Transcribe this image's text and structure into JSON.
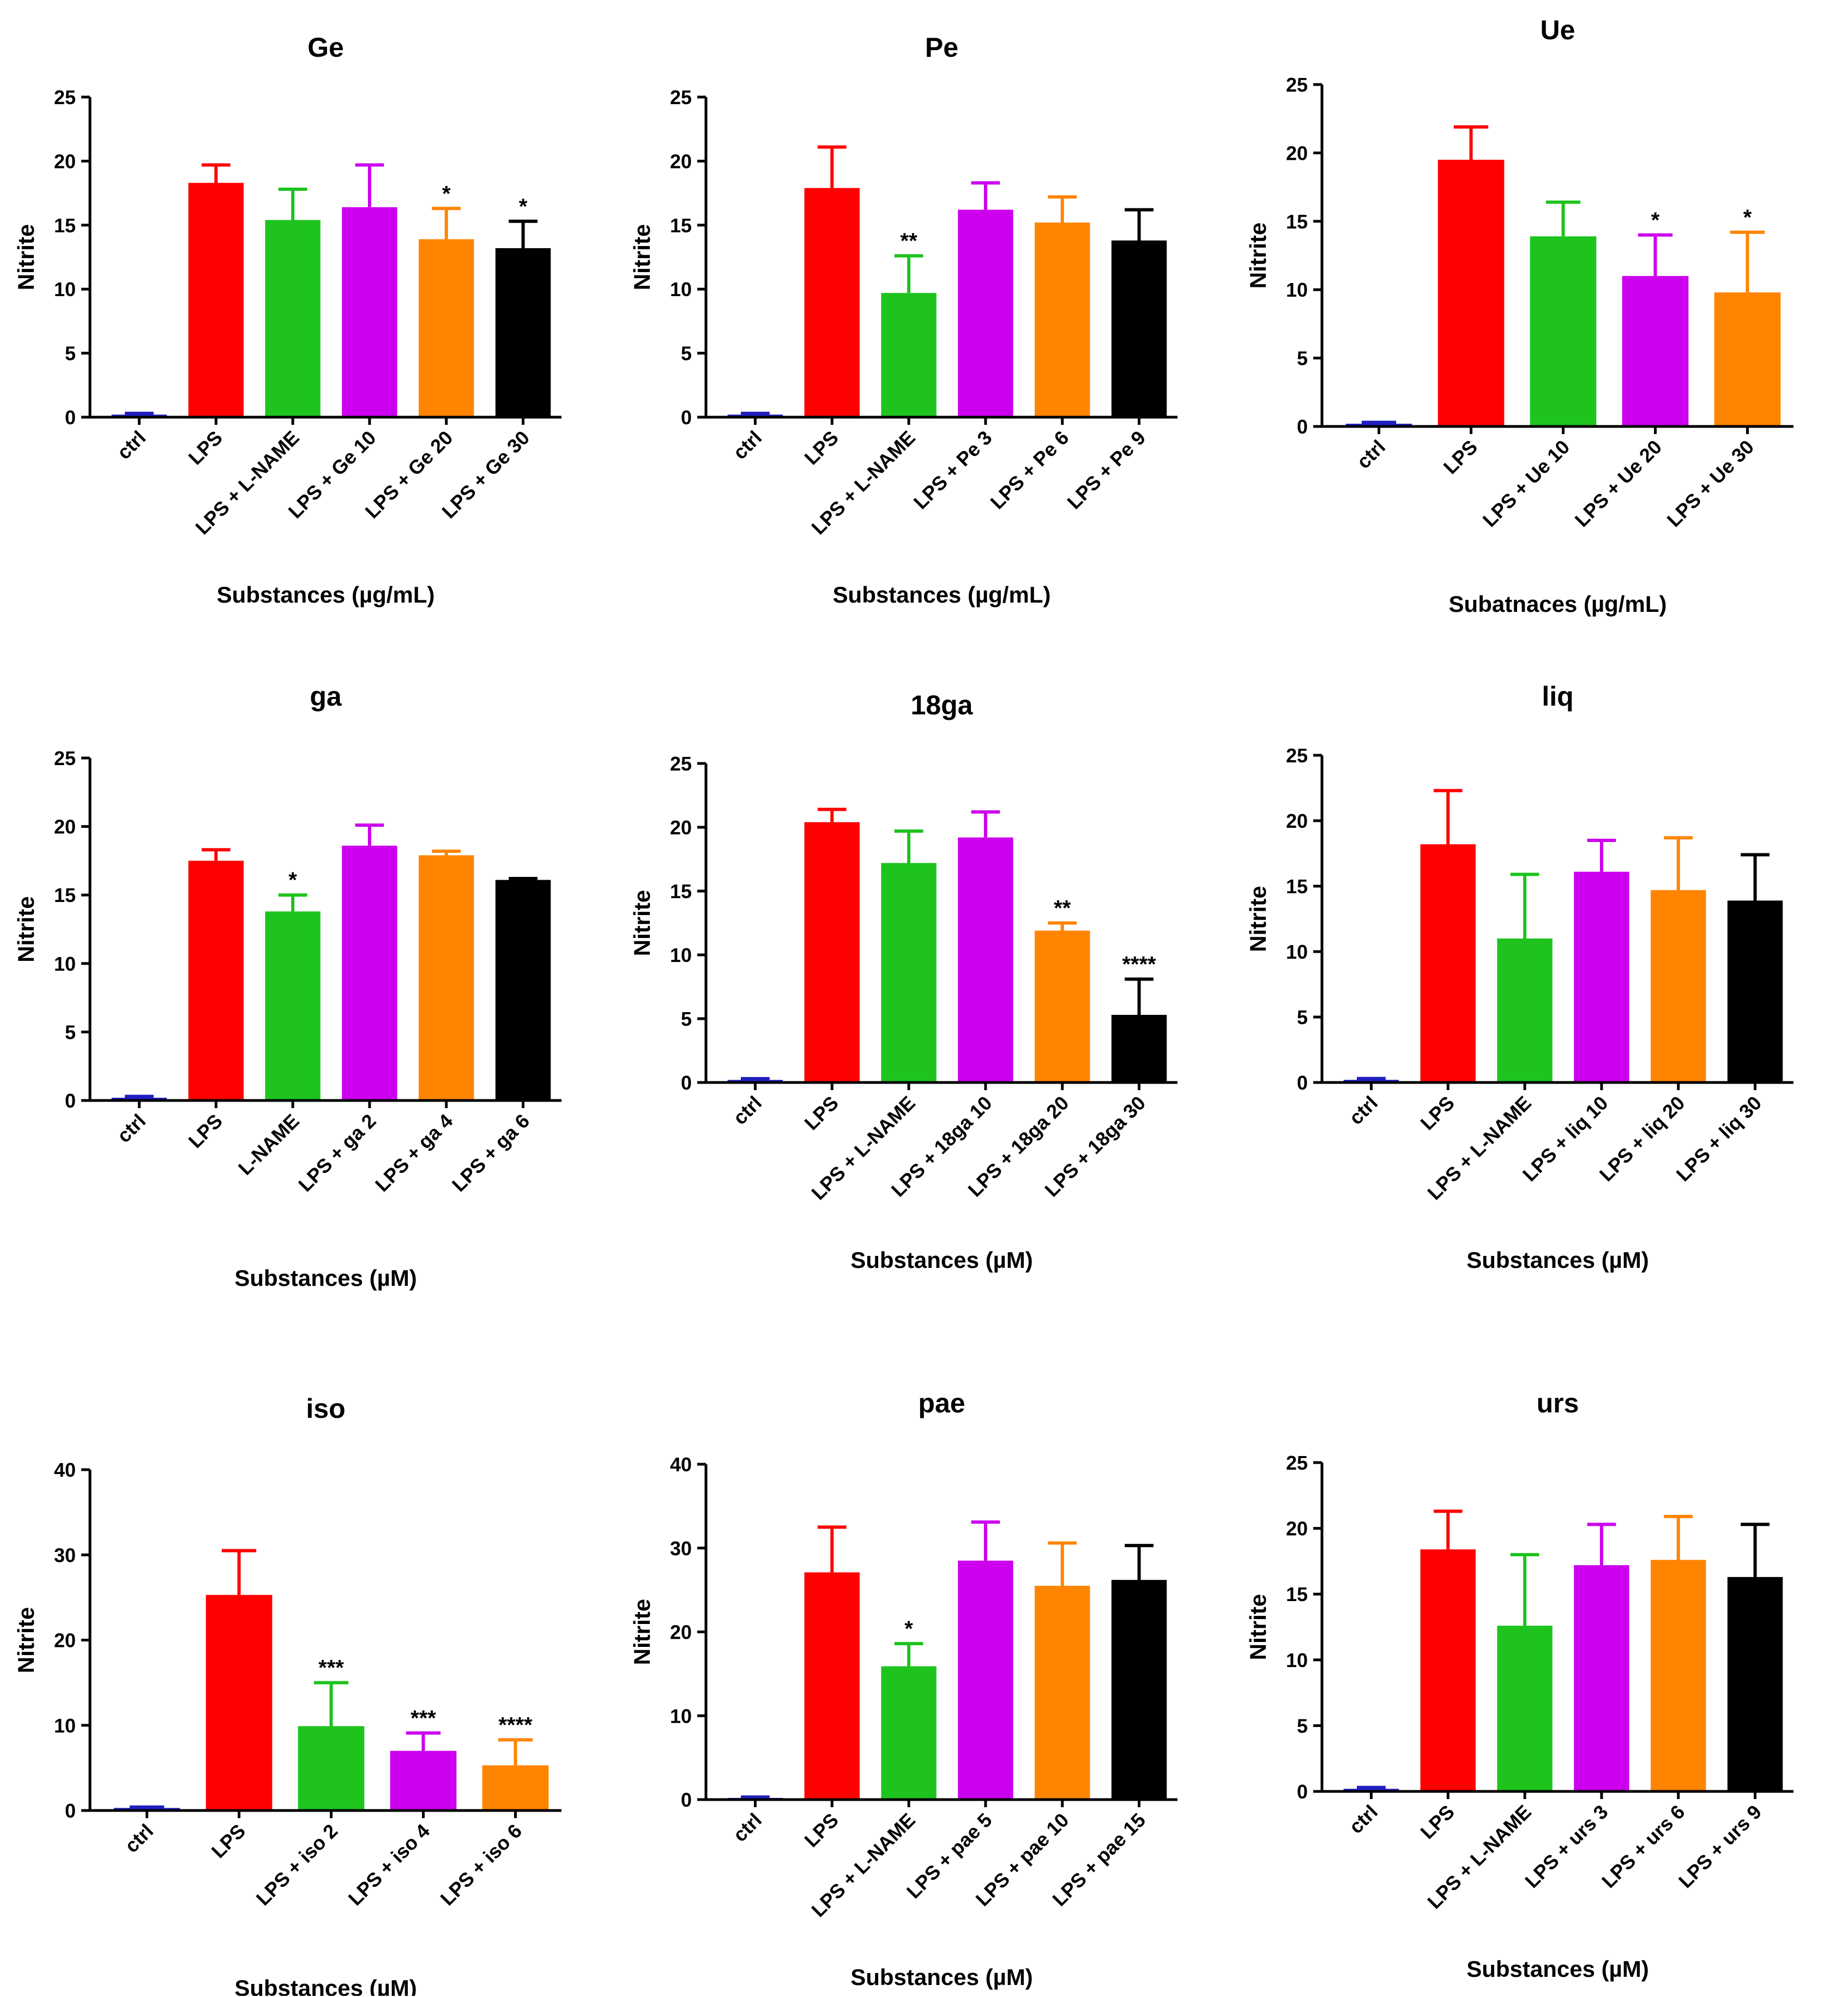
{
  "colors": {
    "ctrl": "#1f1fbf",
    "red": "#ff0000",
    "green": "#1ec31e",
    "purple": "#cc00ee",
    "orange": "#ff8400",
    "black": "#000000"
  },
  "chart_data": [
    {
      "type": "bar",
      "title": "Ge",
      "xlabel": "Substances (µg/mL)",
      "ylabel": "Nitrite",
      "ylim": [
        0,
        25
      ],
      "yticks": [
        0,
        5,
        10,
        15,
        20,
        25
      ],
      "categories": [
        "ctrl",
        "LPS",
        "LPS + L-NAME",
        "LPS + Ge 10",
        "LPS + Ge 20",
        "LPS + Ge 30"
      ],
      "values": [
        0.2,
        18.3,
        15.4,
        16.4,
        13.9,
        13.2
      ],
      "errors": [
        0.1,
        1.4,
        2.4,
        3.3,
        2.4,
        2.1
      ],
      "significance": [
        "",
        "",
        "",
        "",
        "*",
        "*"
      ],
      "colors": [
        "ctrl",
        "red",
        "green",
        "purple",
        "orange",
        "black"
      ]
    },
    {
      "type": "bar",
      "title": "Pe",
      "xlabel": "Substances (µg/mL)",
      "ylabel": "Nitrite",
      "ylim": [
        0,
        25
      ],
      "yticks": [
        0,
        5,
        10,
        15,
        20,
        25
      ],
      "categories": [
        "ctrl",
        "LPS",
        "LPS + L-NAME",
        "LPS + Pe 3",
        "LPS + Pe 6",
        "LPS + Pe 9"
      ],
      "values": [
        0.2,
        17.9,
        9.7,
        16.2,
        15.2,
        13.8
      ],
      "errors": [
        0.1,
        3.2,
        2.9,
        2.1,
        2.0,
        2.4
      ],
      "significance": [
        "",
        "",
        "**",
        "",
        "",
        ""
      ],
      "colors": [
        "ctrl",
        "red",
        "green",
        "purple",
        "orange",
        "black"
      ]
    },
    {
      "type": "bar",
      "title": "Ue",
      "xlabel": "Subatnaces (µg/mL)",
      "ylabel": "Nitrite",
      "ylim": [
        0,
        25
      ],
      "yticks": [
        0,
        5,
        10,
        15,
        20,
        25
      ],
      "categories": [
        "ctrl",
        "LPS",
        "LPS + Ue 10",
        "LPS + Ue 20",
        "LPS + Ue 30"
      ],
      "values": [
        0.2,
        19.5,
        13.9,
        11.0,
        9.8
      ],
      "errors": [
        0.1,
        2.4,
        2.5,
        3.0,
        4.4
      ],
      "significance": [
        "",
        "",
        "",
        "*",
        "*"
      ],
      "colors": [
        "ctrl",
        "red",
        "green",
        "purple",
        "orange"
      ]
    },
    {
      "type": "bar",
      "title": "ga",
      "xlabel": "Substances (µM)",
      "ylabel": "Nitrite",
      "ylim": [
        0,
        25
      ],
      "yticks": [
        0,
        5,
        10,
        15,
        20,
        25
      ],
      "categories": [
        "ctrl",
        "LPS",
        "L-NAME",
        "LPS + ga 2",
        "LPS + ga 4",
        "LPS + ga 6"
      ],
      "values": [
        0.2,
        17.5,
        13.8,
        18.6,
        17.9,
        16.1
      ],
      "errors": [
        0.1,
        0.8,
        1.2,
        1.5,
        0.3,
        0.1
      ],
      "significance": [
        "",
        "",
        "*",
        "",
        "",
        ""
      ],
      "colors": [
        "ctrl",
        "red",
        "green",
        "purple",
        "orange",
        "black"
      ]
    },
    {
      "type": "bar",
      "title": "18ga",
      "xlabel": "Substances (µM)",
      "ylabel": "Nitrite",
      "ylim": [
        0,
        25
      ],
      "yticks": [
        0,
        5,
        10,
        15,
        20,
        25
      ],
      "categories": [
        "ctrl",
        "LPS",
        "LPS + L-NAME",
        "LPS + 18ga 10",
        "LPS + 18ga 20",
        "LPS + 18ga 30"
      ],
      "values": [
        0.2,
        20.4,
        17.2,
        19.2,
        11.9,
        5.3
      ],
      "errors": [
        0.1,
        1.0,
        2.5,
        2.0,
        0.6,
        2.8
      ],
      "significance": [
        "",
        "",
        "",
        "",
        "**",
        "****"
      ],
      "colors": [
        "ctrl",
        "red",
        "green",
        "purple",
        "orange",
        "black"
      ]
    },
    {
      "type": "bar",
      "title": "liq",
      "xlabel": "Substances (µM)",
      "ylabel": "Nitrite",
      "ylim": [
        0,
        25
      ],
      "yticks": [
        0,
        5,
        10,
        15,
        20,
        25
      ],
      "categories": [
        "ctrl",
        "LPS",
        "LPS + L-NAME",
        "LPS + liq 10",
        "LPS + liq 20",
        "LPS + liq 30"
      ],
      "values": [
        0.2,
        18.2,
        11.0,
        16.1,
        14.7,
        13.9
      ],
      "errors": [
        0.1,
        4.1,
        4.9,
        2.4,
        4.0,
        3.5
      ],
      "significance": [
        "",
        "",
        "",
        "",
        "",
        ""
      ],
      "colors": [
        "ctrl",
        "red",
        "green",
        "purple",
        "orange",
        "black"
      ]
    },
    {
      "type": "bar",
      "title": "iso",
      "xlabel": "Substances (µM)",
      "ylabel": "Nitrite",
      "ylim": [
        0,
        40
      ],
      "yticks": [
        0,
        10,
        20,
        30,
        40
      ],
      "categories": [
        "ctrl",
        "LPS",
        "LPS + iso 2",
        "LPS + iso 4",
        "LPS + iso 6"
      ],
      "values": [
        0.3,
        25.3,
        9.9,
        7.0,
        5.3
      ],
      "errors": [
        0.1,
        5.2,
        5.1,
        2.1,
        3.0
      ],
      "significance": [
        "",
        "",
        "***",
        "***",
        "****"
      ],
      "colors": [
        "ctrl",
        "red",
        "green",
        "purple",
        "orange"
      ]
    },
    {
      "type": "bar",
      "title": "pae",
      "xlabel": "Substances (µM)",
      "ylabel": "Nitrite",
      "ylim": [
        0,
        40
      ],
      "yticks": [
        0,
        10,
        20,
        30,
        40
      ],
      "categories": [
        "ctrl",
        "LPS",
        "LPS + L-NAME",
        "LPS + pae 5",
        "LPS + pae 10",
        "LPS + pae 15"
      ],
      "values": [
        0.2,
        27.1,
        15.9,
        28.5,
        25.5,
        26.2
      ],
      "errors": [
        0.1,
        5.4,
        2.7,
        4.6,
        5.1,
        4.1
      ],
      "significance": [
        "",
        "",
        "*",
        "",
        "",
        ""
      ],
      "colors": [
        "ctrl",
        "red",
        "green",
        "purple",
        "orange",
        "black"
      ]
    },
    {
      "type": "bar",
      "title": "urs",
      "xlabel": "Substances (µM)",
      "ylabel": "Nitrite",
      "ylim": [
        0,
        25
      ],
      "yticks": [
        0,
        5,
        10,
        15,
        20,
        25
      ],
      "categories": [
        "ctrl",
        "LPS",
        "LPS + L-NAME",
        "LPS + urs 3",
        "LPS + urs 6",
        "LPS + urs 9"
      ],
      "values": [
        0.2,
        18.4,
        12.6,
        17.2,
        17.6,
        16.3
      ],
      "errors": [
        0.1,
        2.9,
        5.4,
        3.1,
        3.3,
        4.0
      ],
      "significance": [
        "",
        "",
        "",
        "",
        "",
        ""
      ],
      "colors": [
        "ctrl",
        "red",
        "green",
        "purple",
        "orange",
        "black"
      ]
    }
  ]
}
